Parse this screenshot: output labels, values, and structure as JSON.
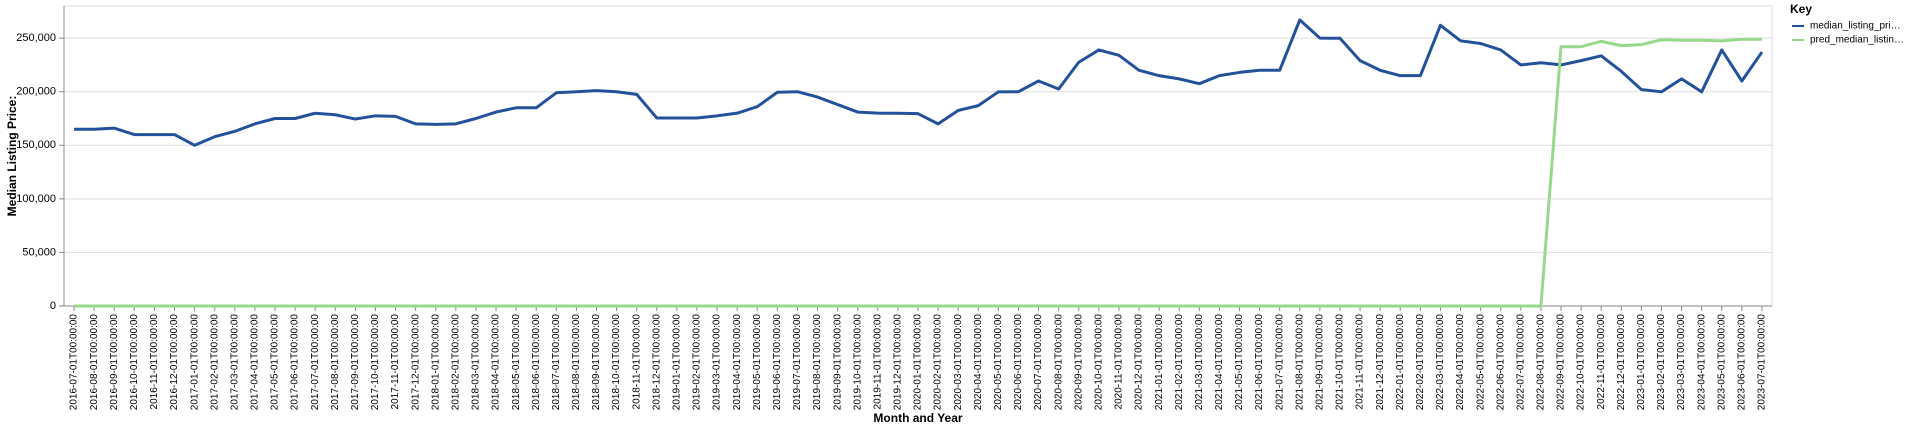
{
  "chart_data": {
    "type": "line",
    "x_label": "Month and Year",
    "y_label": "Median Listing Price:",
    "legend_title": "Key",
    "legend_position": "right",
    "grid": true,
    "x": [
      "2016-07-01T00:00:00",
      "2016-08-01T00:00:00",
      "2016-09-01T00:00:00",
      "2016-10-01T00:00:00",
      "2016-11-01T00:00:00",
      "2016-12-01T00:00:00",
      "2017-01-01T00:00:00",
      "2017-02-01T00:00:00",
      "2017-03-01T00:00:00",
      "2017-04-01T00:00:00",
      "2017-05-01T00:00:00",
      "2017-06-01T00:00:00",
      "2017-07-01T00:00:00",
      "2017-08-01T00:00:00",
      "2017-09-01T00:00:00",
      "2017-10-01T00:00:00",
      "2017-11-01T00:00:00",
      "2017-12-01T00:00:00",
      "2018-01-01T00:00:00",
      "2018-02-01T00:00:00",
      "2018-03-01T00:00:00",
      "2018-04-01T00:00:00",
      "2018-05-01T00:00:00",
      "2018-06-01T00:00:00",
      "2018-07-01T00:00:00",
      "2018-08-01T00:00:00",
      "2018-09-01T00:00:00",
      "2018-10-01T00:00:00",
      "2018-11-01T00:00:00",
      "2018-12-01T00:00:00",
      "2019-01-01T00:00:00",
      "2019-02-01T00:00:00",
      "2019-03-01T00:00:00",
      "2019-04-01T00:00:00",
      "2019-05-01T00:00:00",
      "2019-06-01T00:00:00",
      "2019-07-01T00:00:00",
      "2019-08-01T00:00:00",
      "2019-09-01T00:00:00",
      "2019-10-01T00:00:00",
      "2019-11-01T00:00:00",
      "2019-12-01T00:00:00",
      "2020-01-01T00:00:00",
      "2020-02-01T00:00:00",
      "2020-03-01T00:00:00",
      "2020-04-01T00:00:00",
      "2020-05-01T00:00:00",
      "2020-06-01T00:00:00",
      "2020-07-01T00:00:00",
      "2020-08-01T00:00:00",
      "2020-09-01T00:00:00",
      "2020-10-01T00:00:00",
      "2020-11-01T00:00:00",
      "2020-12-01T00:00:00",
      "2021-01-01T00:00:00",
      "2021-02-01T00:00:00",
      "2021-03-01T00:00:00",
      "2021-04-01T00:00:00",
      "2021-05-01T00:00:00",
      "2021-06-01T00:00:00",
      "2021-07-01T00:00:00",
      "2021-08-01T00:00:00",
      "2021-09-01T00:00:00",
      "2021-10-01T00:00:00",
      "2021-11-01T00:00:00",
      "2021-12-01T00:00:00",
      "2022-01-01T00:00:00",
      "2022-02-01T00:00:00",
      "2022-03-01T00:00:00",
      "2022-04-01T00:00:00",
      "2022-05-01T00:00:00",
      "2022-06-01T00:00:00",
      "2022-07-01T00:00:00",
      "2022-08-01T00:00:00",
      "2022-09-01T00:00:00",
      "2022-10-01T00:00:00",
      "2022-11-01T00:00:00",
      "2022-12-01T00:00:00",
      "2023-01-01T00:00:00",
      "2023-02-01T00:00:00",
      "2023-03-01T00:00:00",
      "2023-04-01T00:00:00",
      "2023-05-01T00:00:00",
      "2023-06-01T00:00:00",
      "2023-07-01T00:00:00"
    ],
    "series": [
      {
        "name": "median_listing_pri…",
        "color": "#24529a",
        "values": [
          165000,
          165000,
          166000,
          160000,
          160000,
          160000,
          150000,
          158000,
          163000,
          170000,
          175000,
          175000,
          179900,
          178500,
          174500,
          177500,
          177000,
          170000,
          169500,
          170000,
          175000,
          181000,
          185000,
          185000,
          199000,
          200000,
          201000,
          200000,
          197500,
          175500,
          175500,
          175500,
          177500,
          180000,
          186000,
          199500,
          200000,
          195000,
          188000,
          181000,
          180000,
          179900,
          179500,
          170000,
          182500,
          187000,
          199900,
          200000,
          210000,
          202500,
          227500,
          239000,
          234000,
          220000,
          215000,
          212000,
          207500,
          215000,
          218000,
          220000,
          220000,
          267000,
          250000,
          249900,
          229000,
          220000,
          215000,
          215000,
          262000,
          247500,
          245000,
          239000,
          225000,
          227000,
          225000,
          229000,
          233500,
          219000,
          202000,
          199900,
          212000,
          199900,
          239000,
          210000,
          237000
        ]
      },
      {
        "name": "pred_median_listin…",
        "color": "#98d88d",
        "values": [
          0,
          0,
          0,
          0,
          0,
          0,
          0,
          0,
          0,
          0,
          0,
          0,
          0,
          0,
          0,
          0,
          0,
          0,
          0,
          0,
          0,
          0,
          0,
          0,
          0,
          0,
          0,
          0,
          0,
          0,
          0,
          0,
          0,
          0,
          0,
          0,
          0,
          0,
          0,
          0,
          0,
          0,
          0,
          0,
          0,
          0,
          0,
          0,
          0,
          0,
          0,
          0,
          0,
          0,
          0,
          0,
          0,
          0,
          0,
          0,
          0,
          0,
          0,
          0,
          0,
          0,
          0,
          0,
          0,
          0,
          0,
          0,
          0,
          0,
          242000,
          242000,
          247000,
          243000,
          244000,
          248500,
          248000,
          248000,
          247500,
          249000,
          249000
        ]
      }
    ],
    "ylim": [
      0,
      280000
    ],
    "yticks": [
      0,
      {
        "value": 50000,
        "label": "50,000"
      },
      {
        "value": 100000,
        "label": "100,000"
      },
      {
        "value": 150000,
        "label": "150,000"
      },
      {
        "value": 200000,
        "label": "200,000"
      },
      {
        "value": 250000,
        "label": "250,000"
      }
    ]
  }
}
